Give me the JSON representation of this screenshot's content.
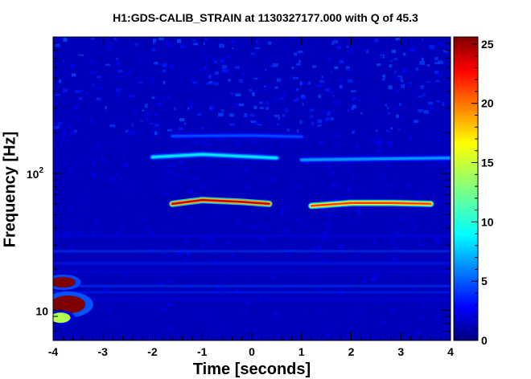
{
  "chart_data": {
    "type": "heatmap",
    "title": "H1:GDS-CALIB_STRAIN at 1130327177.000 with Q of 45.3",
    "xlabel": "Time [seconds]",
    "ylabel": "Frequency [Hz]",
    "xlim": [
      -4,
      4
    ],
    "x_ticks": [
      "-4",
      "-3",
      "-2",
      "-1",
      "0",
      "1",
      "2",
      "3",
      "4"
    ],
    "y_scale": "log",
    "ylim": [
      6,
      1000
    ],
    "y_ticks": [
      {
        "value": 10,
        "base": "10",
        "exp": ""
      },
      {
        "value": 100,
        "base": "10",
        "exp": "2"
      }
    ],
    "colorbar": {
      "range": [
        0,
        25.6
      ],
      "ticks": [
        "0",
        "5",
        "10",
        "15",
        "20",
        "25"
      ],
      "colormap": "jet"
    },
    "background_energy": 1.5,
    "features": [
      {
        "kind": "track",
        "description": "strong chirp line",
        "points": [
          [
            -1.6,
            60
          ],
          [
            -1.0,
            64
          ],
          [
            -0.2,
            62
          ],
          [
            0.35,
            60
          ]
        ],
        "energy": 24
      },
      {
        "kind": "track",
        "description": "strong line",
        "points": [
          [
            1.2,
            58
          ],
          [
            2.0,
            61
          ],
          [
            2.8,
            61
          ],
          [
            3.6,
            60
          ]
        ],
        "energy": 21
      },
      {
        "kind": "track",
        "description": "harmonic line",
        "points": [
          [
            -2.0,
            132
          ],
          [
            -1.0,
            138
          ],
          [
            0.5,
            130
          ]
        ],
        "energy": 9
      },
      {
        "kind": "track",
        "description": "harmonic line",
        "points": [
          [
            1.0,
            126
          ],
          [
            2.5,
            128
          ],
          [
            4.0,
            130
          ]
        ],
        "energy": 7
      },
      {
        "kind": "track",
        "description": "faint upper line",
        "points": [
          [
            -1.6,
            188
          ],
          [
            0.0,
            190
          ],
          [
            1.0,
            186
          ]
        ],
        "energy": 5
      },
      {
        "kind": "blob",
        "description": "low-frequency glitch",
        "t": -3.7,
        "f": 11,
        "dt": 0.35,
        "df": 1.8,
        "energy": 30
      },
      {
        "kind": "blob",
        "description": "low-frequency glitch",
        "t": -3.8,
        "f": 16,
        "dt": 0.25,
        "df": 1.5,
        "energy": 28
      },
      {
        "kind": "blob",
        "description": "low-frequency glitch",
        "t": -3.85,
        "f": 8.8,
        "dt": 0.2,
        "df": 0.8,
        "energy": 14
      }
    ]
  }
}
